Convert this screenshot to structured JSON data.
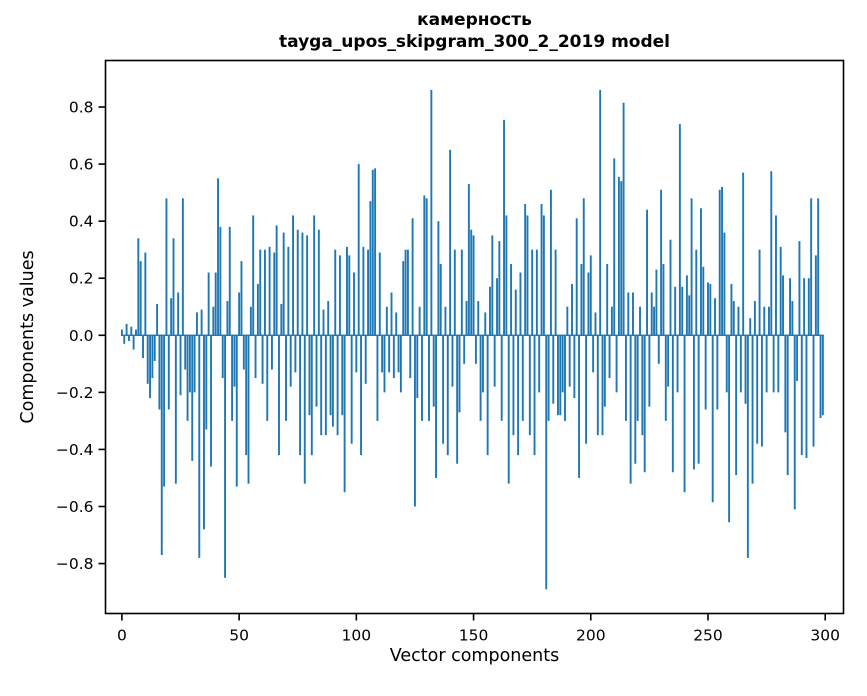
{
  "figure": {
    "background": "#ffffff",
    "text_color": "#000000"
  },
  "chart_data": {
    "type": "bar",
    "title": "камерность\ntayga_upos_skipgram_300_2_2019 model",
    "title_lines": [
      "камерность",
      "tayga_upos_skipgram_300_2_2019 model"
    ],
    "xlabel": "Vector components",
    "ylabel": "Components values",
    "legend": null,
    "grid": false,
    "bar_color": "#1f77b4",
    "axis_color": "#000000",
    "xlim": [
      -7.0,
      307.8
    ],
    "ylim": [
      -0.975,
      0.963
    ],
    "xticks": [
      0,
      50,
      100,
      150,
      200,
      250,
      300
    ],
    "xtick_labels": [
      "0",
      "50",
      "100",
      "150",
      "200",
      "250",
      "300"
    ],
    "yticks": [
      0.8,
      0.6,
      0.4,
      0.2,
      0.0,
      -0.2,
      -0.4,
      -0.6,
      -0.8
    ],
    "ytick_labels": [
      "0.8",
      "0.6",
      "0.4",
      "0.2",
      "0.0",
      "−0.2",
      "−0.4",
      "−0.6",
      "−0.8"
    ],
    "x_start": 0,
    "n_components": 300,
    "values": [
      0.02,
      -0.03,
      0.04,
      -0.02,
      0.03,
      -0.05,
      0.02,
      0.34,
      0.26,
      -0.08,
      0.29,
      -0.17,
      -0.22,
      -0.15,
      -0.09,
      0.11,
      -0.26,
      -0.77,
      -0.53,
      0.48,
      -0.26,
      0.13,
      0.34,
      -0.52,
      0.15,
      -0.21,
      0.48,
      -0.12,
      -0.3,
      -0.2,
      -0.44,
      -0.2,
      0.08,
      -0.78,
      0.09,
      -0.68,
      -0.33,
      0.22,
      -0.46,
      0.1,
      0.22,
      0.55,
      0.38,
      -0.15,
      -0.85,
      0.12,
      0.38,
      -0.3,
      -0.18,
      -0.53,
      0.15,
      0.26,
      -0.12,
      -0.42,
      -0.52,
      0.1,
      0.42,
      -0.15,
      0.18,
      0.3,
      -0.17,
      0.3,
      -0.3,
      0.31,
      -0.12,
      0.29,
      0.385,
      -0.42,
      0.11,
      0.36,
      -0.3,
      0.31,
      -0.18,
      0.42,
      -0.13,
      0.37,
      -0.42,
      0.36,
      -0.52,
      0.35,
      -0.28,
      -0.42,
      0.42,
      -0.25,
      0.37,
      -0.35,
      0.09,
      -0.35,
      0.12,
      -0.28,
      -0.32,
      0.3,
      -0.35,
      0.28,
      -0.28,
      -0.55,
      0.31,
      0.28,
      -0.38,
      0.22,
      -0.13,
      0.6,
      -0.42,
      0.31,
      -0.17,
      0.3,
      0.47,
      0.58,
      0.585,
      -0.3,
      0.29,
      -0.13,
      -0.2,
      0.1,
      -0.13,
      0.15,
      -0.15,
      0.08,
      -0.13,
      -0.2,
      0.26,
      0.3,
      0.3,
      -0.15,
      0.41,
      -0.6,
      -0.22,
      0.1,
      -0.3,
      0.49,
      0.48,
      -0.3,
      0.86,
      -0.25,
      -0.5,
      0.4,
      0.25,
      -0.38,
      0.1,
      -0.42,
      0.65,
      -0.18,
      0.3,
      -0.45,
      -0.27,
      0.3,
      -0.1,
      0.12,
      0.53,
      0.37,
      0.35,
      -0.1,
      0.12,
      -0.3,
      -0.2,
      0.08,
      -0.42,
      0.17,
      0.35,
      -0.18,
      0.2,
      0.33,
      -0.3,
      0.755,
      0.42,
      -0.52,
      0.25,
      -0.35,
      0.16,
      -0.42,
      0.22,
      -0.3,
      0.46,
      0.42,
      -0.35,
      0.3,
      -0.42,
      0.3,
      -0.2,
      0.46,
      0.42,
      -0.89,
      -0.3,
      0.51,
      -0.24,
      0.3,
      -0.28,
      -0.28,
      -0.2,
      -0.3,
      0.1,
      -0.18,
      0.18,
      -0.22,
      0.41,
      -0.5,
      0.25,
      0.48,
      -0.38,
      0.22,
      0.28,
      -0.13,
      0.08,
      -0.35,
      0.86,
      -0.35,
      -0.25,
      0.25,
      -0.15,
      0.1,
      0.62,
      -0.2,
      0.555,
      0.54,
      0.815,
      -0.3,
      0.15,
      -0.52,
      0.15,
      -0.45,
      -0.3,
      0.1,
      -0.35,
      -0.48,
      0.44,
      -0.25,
      0.15,
      0.1,
      0.23,
      -0.1,
      0.51,
      0.25,
      -0.3,
      -0.18,
      0.335,
      -0.48,
      0.17,
      -0.2,
      0.74,
      0.17,
      -0.55,
      0.21,
      0.14,
      0.48,
      -0.47,
      0.3,
      -0.45,
      0.445,
      0.24,
      -0.26,
      0.185,
      0.18,
      -0.585,
      0.13,
      -0.26,
      0.51,
      0.52,
      0.36,
      -0.2,
      -0.655,
      0.18,
      0.12,
      -0.49,
      0.1,
      -0.2,
      0.57,
      -0.24,
      -0.78,
      0.06,
      -0.52,
      0.12,
      -0.38,
      0.3,
      -0.39,
      0.1,
      -0.2,
      0.1,
      0.575,
      -0.2,
      0.42,
      -0.2,
      0.31,
      0.21,
      -0.34,
      -0.49,
      0.2,
      0.12,
      -0.61,
      -0.16,
      0.33,
      -0.42,
      0.2,
      -0.43,
      0.2,
      0.48,
      -0.39,
      0.28,
      0.48,
      -0.29,
      -0.28
    ]
  }
}
